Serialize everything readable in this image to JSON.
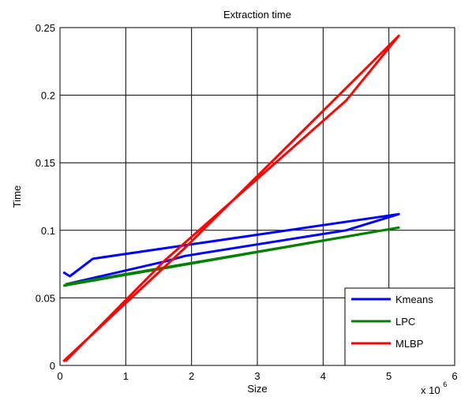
{
  "chart_data": {
    "type": "line",
    "title": "Extraction time",
    "xlabel": "Size",
    "ylabel": "Time",
    "x_exponent_label": "x 10",
    "x_exponent_power": "6",
    "xlim": [
      0,
      6
    ],
    "ylim": [
      0,
      0.25
    ],
    "xticks": [
      0,
      1,
      2,
      3,
      4,
      5,
      6
    ],
    "xtick_labels": [
      "0",
      "1",
      "2",
      "3",
      "4",
      "5",
      "6"
    ],
    "yticks": [
      0,
      0.05,
      0.1,
      0.15,
      0.2,
      0.25
    ],
    "ytick_labels": [
      "0",
      "0.05",
      "0.1",
      "0.15",
      "0.2",
      "0.25"
    ],
    "grid": true,
    "legend_position": "bottom-right",
    "series": [
      {
        "name": "Kmeans",
        "color": "#0000ff",
        "points": [
          [
            0.05,
            0.069
          ],
          [
            0.15,
            0.066
          ],
          [
            0.5,
            0.079
          ],
          [
            5.15,
            0.112
          ],
          [
            4.35,
            0.1
          ],
          [
            1.9,
            0.081
          ],
          [
            1.6,
            0.077
          ],
          [
            0.08,
            0.06
          ]
        ]
      },
      {
        "name": "LPC",
        "color": "#008000",
        "points": [
          [
            0.05,
            0.059
          ],
          [
            5.15,
            0.102
          ],
          [
            1.9,
            0.075
          ],
          [
            0.08,
            0.06
          ]
        ]
      },
      {
        "name": "MLBP",
        "color": "#ff0000",
        "points": [
          [
            0.05,
            0.003
          ],
          [
            1.9,
            0.087
          ],
          [
            5.15,
            0.244
          ],
          [
            4.35,
            0.196
          ],
          [
            1.6,
            0.078
          ],
          [
            0.08,
            0.003
          ]
        ]
      }
    ]
  }
}
